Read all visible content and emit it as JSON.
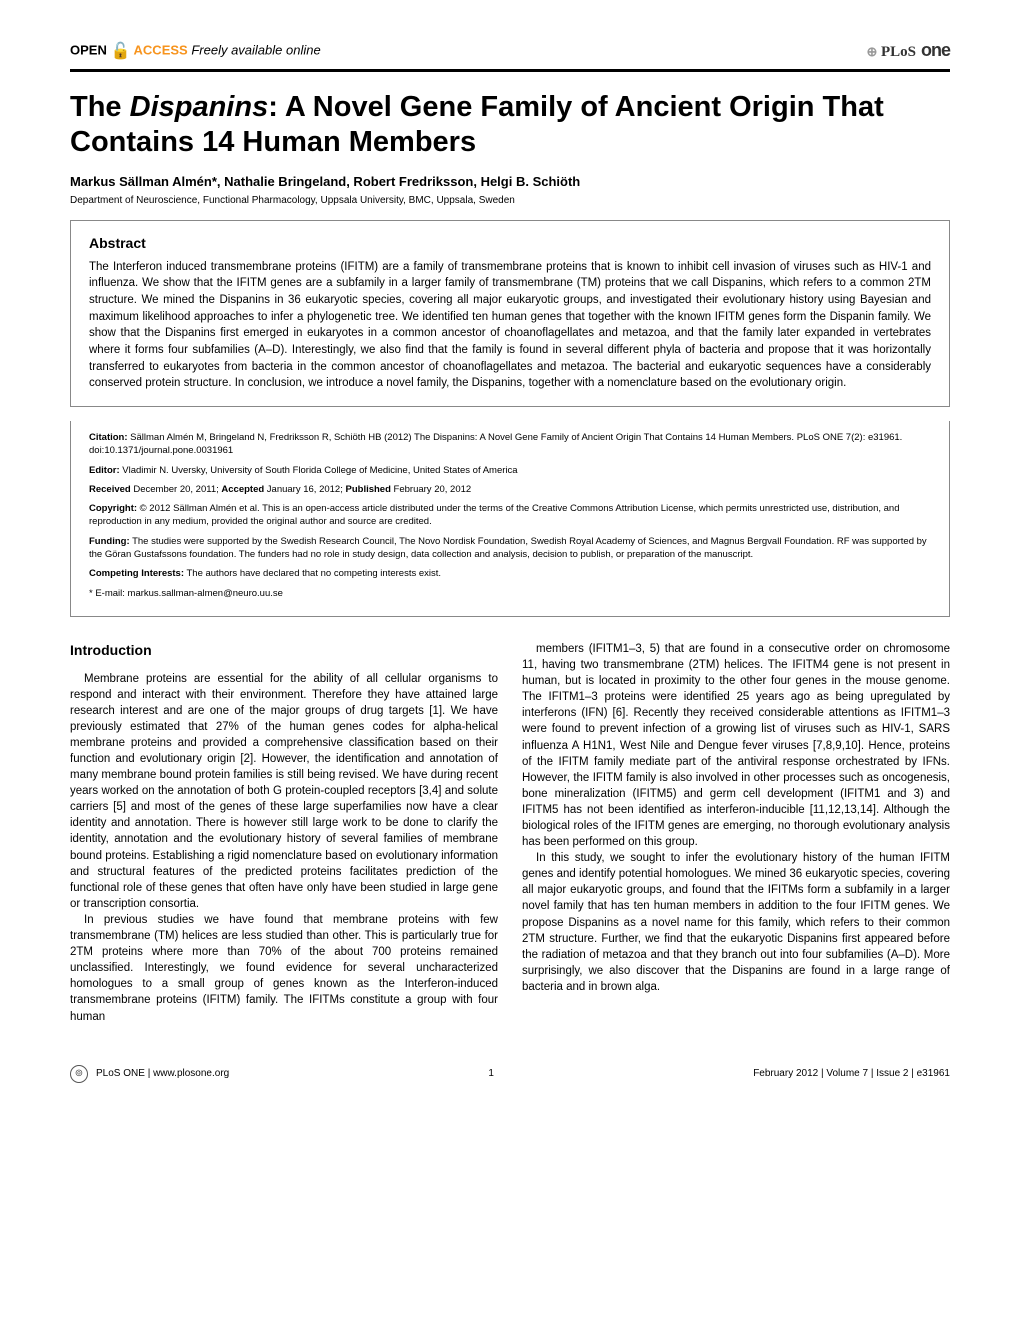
{
  "header": {
    "open": "OPEN",
    "access": "ACCESS",
    "freely": "Freely available online",
    "journal_plos": "PLoS",
    "journal_one": "one"
  },
  "article": {
    "title_pre": "The ",
    "title_italic": "Dispanins",
    "title_post": ": A Novel Gene Family of Ancient Origin That Contains 14 Human Members",
    "authors": "Markus Sällman Almén*, Nathalie Bringeland, Robert Fredriksson, Helgi B. Schiöth",
    "affiliation": "Department of Neuroscience, Functional Pharmacology, Uppsala University, BMC, Uppsala, Sweden"
  },
  "abstract": {
    "heading": "Abstract",
    "text": "The Interferon induced transmembrane proteins (IFITM) are a family of transmembrane proteins that is known to inhibit cell invasion of viruses such as HIV-1 and influenza. We show that the IFITM genes are a subfamily in a larger family of transmembrane (TM) proteins that we call Dispanins, which refers to a common 2TM structure. We mined the Dispanins in 36 eukaryotic species, covering all major eukaryotic groups, and investigated their evolutionary history using Bayesian and maximum likelihood approaches to infer a phylogenetic tree. We identified ten human genes that together with the known IFITM genes form the Dispanin family. We show that the Dispanins first emerged in eukaryotes in a common ancestor of choanoflagellates and metazoa, and that the family later expanded in vertebrates where it forms four subfamilies (A–D). Interestingly, we also find that the family is found in several different phyla of bacteria and propose that it was horizontally transferred to eukaryotes from bacteria in the common ancestor of choanoflagellates and metazoa. The bacterial and eukaryotic sequences have a considerably conserved protein structure. In conclusion, we introduce a novel family, the Dispanins, together with a nomenclature based on the evolutionary origin."
  },
  "meta": {
    "citation_label": "Citation:",
    "citation_text": " Sällman Almén M, Bringeland N, Fredriksson R, Schiöth HB (2012) The Dispanins: A Novel Gene Family of Ancient Origin That Contains 14 Human Members. PLoS ONE 7(2): e31961. doi:10.1371/journal.pone.0031961",
    "editor_label": "Editor:",
    "editor_text": " Vladimir N. Uversky, University of South Florida College of Medicine, United States of America",
    "received_label": "Received",
    "received_text": " December 20, 2011; ",
    "accepted_label": "Accepted",
    "accepted_text": " January 16, 2012; ",
    "published_label": "Published",
    "published_text": " February 20, 2012",
    "copyright_label": "Copyright:",
    "copyright_text": " © 2012 Sällman Almén et al. This is an open-access article distributed under the terms of the Creative Commons Attribution License, which permits unrestricted use, distribution, and reproduction in any medium, provided the original author and source are credited.",
    "funding_label": "Funding:",
    "funding_text": " The studies were supported by the Swedish Research Council, The Novo Nordisk Foundation, Swedish Royal Academy of Sciences, and Magnus Bergvall Foundation. RF was supported by the Göran Gustafssons foundation. The funders had no role in study design, data collection and analysis, decision to publish, or preparation of the manuscript.",
    "competing_label": "Competing Interests:",
    "competing_text": " The authors have declared that no competing interests exist.",
    "email": "* E-mail: markus.sallman-almen@neuro.uu.se"
  },
  "body": {
    "intro_heading": "Introduction",
    "col1_p1": "Membrane proteins are essential for the ability of all cellular organisms to respond and interact with their environment. Therefore they have attained large research interest and are one of the major groups of drug targets [1]. We have previously estimated that 27% of the human genes codes for alpha-helical membrane proteins and provided a comprehensive classification based on their function and evolutionary origin [2]. However, the identification and annotation of many membrane bound protein families is still being revised. We have during recent years worked on the annotation of both G protein-coupled receptors [3,4] and solute carriers [5] and most of the genes of these large superfamilies now have a clear identity and annotation. There is however still large work to be done to clarify the identity, annotation and the evolutionary history of several families of membrane bound proteins. Establishing a rigid nomenclature based on evolutionary information and structural features of the predicted proteins facilitates prediction of the functional role of these genes that often have only have been studied in large gene or transcription consortia.",
    "col1_p2": "In previous studies we have found that membrane proteins with few transmembrane (TM) helices are less studied than other. This is particularly true for 2TM proteins where more than 70% of the about 700 proteins remained unclassified. Interestingly, we found evidence for several uncharacterized homologues to a small group of genes known as the Interferon-induced transmembrane proteins (IFITM) family. The IFITMs constitute a group with four human",
    "col2_p1": "members (IFITM1–3, 5) that are found in a consecutive order on chromosome 11, having two transmembrane (2TM) helices. The IFITM4 gene is not present in human, but is located in proximity to the other four genes in the mouse genome. The IFITM1–3 proteins were identified 25 years ago as being upregulated by interferons (IFN) [6]. Recently they received considerable attentions as IFITM1–3 were found to prevent infection of a growing list of viruses such as HIV-1, SARS influenza A H1N1, West Nile and Dengue fever viruses [7,8,9,10]. Hence, proteins of the IFITM family mediate part of the antiviral response orchestrated by IFNs. However, the IFITM family is also involved in other processes such as oncogenesis, bone mineralization (IFITM5) and germ cell development (IFITM1 and 3) and IFITM5 has not been identified as interferon-inducible [11,12,13,14]. Although the biological roles of the IFITM genes are emerging, no thorough evolutionary analysis has been performed on this group.",
    "col2_p2": "In this study, we sought to infer the evolutionary history of the human IFITM genes and identify potential homologues. We mined 36 eukaryotic species, covering all major eukaryotic groups, and found that the IFITMs form a subfamily in a larger novel family that has ten human members in addition to the four IFITM genes. We propose Dispanins as a novel name for this family, which refers to their common 2TM structure. Further, we find that the eukaryotic Dispanins first appeared before the radiation of metazoa and that they branch out into four subfamilies (A–D). More surprisingly, we also discover that the Dispanins are found in a large range of bacteria and in brown alga."
  },
  "footer": {
    "journal": "PLoS ONE | www.plosone.org",
    "page": "1",
    "issue": "February 2012 | Volume 7 | Issue 2 | e31961"
  }
}
